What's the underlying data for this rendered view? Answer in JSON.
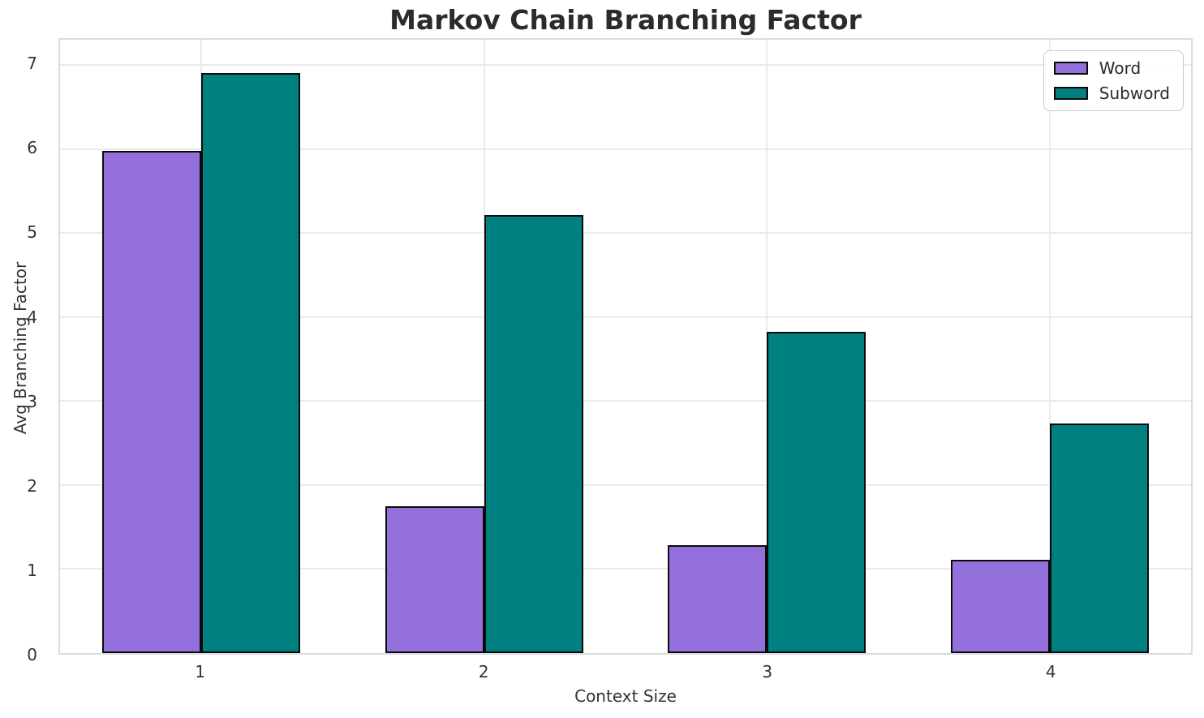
{
  "chart_data": {
    "type": "bar",
    "title": "Markov Chain Branching Factor",
    "xlabel": "Context Size",
    "ylabel": "Avg Branching Factor",
    "categories": [
      "1",
      "2",
      "3",
      "4"
    ],
    "series": [
      {
        "name": "Word",
        "color": "#9370DB",
        "values": [
          5.98,
          1.75,
          1.28,
          1.11
        ]
      },
      {
        "name": "Subword",
        "color": "#008080",
        "values": [
          6.9,
          5.21,
          3.82,
          2.73
        ]
      }
    ],
    "ylim": [
      0,
      7.3
    ],
    "yticks": [
      0,
      1,
      2,
      3,
      4,
      5,
      6,
      7
    ],
    "bar_width_fraction": 0.35,
    "bar_edge_color": "#0a0a0a",
    "grid": true,
    "legend_position": "upper right",
    "colors": {
      "grid": "#eaeaea",
      "spine": "#dcdcdc",
      "title_text": "#2b2b2b",
      "tick_text": "#333333"
    }
  }
}
